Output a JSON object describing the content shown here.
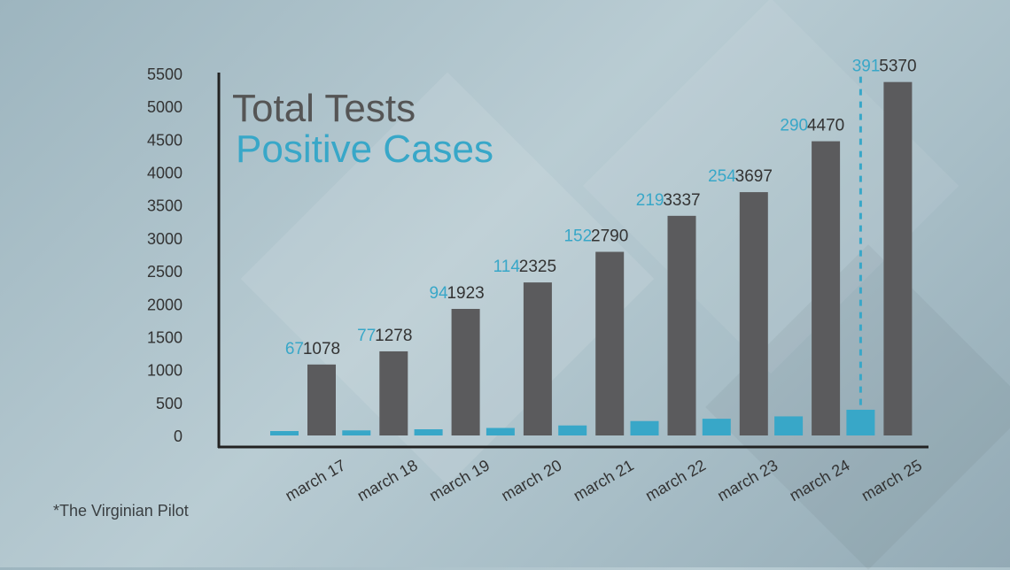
{
  "source_note": "*The Virginian Pilot",
  "colors": {
    "total": "#5b5b5d",
    "positive": "#38a7c8",
    "axis": "#222222",
    "text": "#333333"
  },
  "chart_data": {
    "type": "bar",
    "title": "",
    "categories": [
      "march 17",
      "march 18",
      "march 19",
      "march 20",
      "march 21",
      "march 22",
      "march 23",
      "march 24",
      "march 25"
    ],
    "series": [
      {
        "name": "Total Tests",
        "values": [
          1078,
          1278,
          1923,
          2325,
          2790,
          3337,
          3697,
          4470,
          5370
        ]
      },
      {
        "name": "Positive Cases",
        "values": [
          67,
          77,
          94,
          114,
          152,
          219,
          254,
          290,
          391
        ]
      }
    ],
    "y_ticks": [
      0,
      500,
      1000,
      1500,
      2000,
      2500,
      3000,
      3500,
      4000,
      4500,
      5000,
      5500
    ],
    "ylim": [
      0,
      5500
    ],
    "grid": false,
    "legend": "top-left"
  }
}
